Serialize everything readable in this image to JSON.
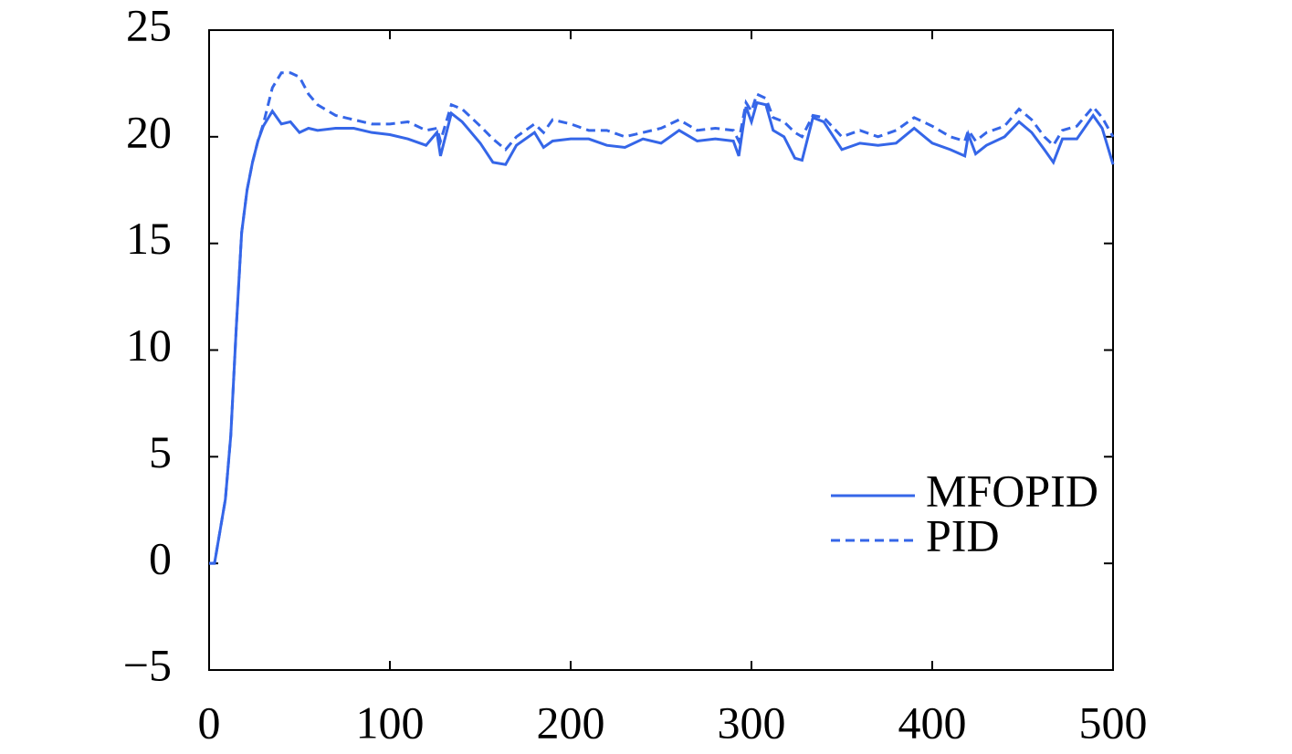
{
  "chart_data": {
    "type": "line",
    "x": [
      0,
      3,
      6,
      9,
      12,
      15,
      18,
      21,
      24,
      27,
      30,
      35,
      40,
      45,
      50,
      55,
      60,
      70,
      80,
      90,
      100,
      110,
      120,
      126,
      128,
      134,
      140,
      150,
      157,
      164,
      170,
      180,
      185,
      190,
      200,
      210,
      220,
      230,
      240,
      250,
      260,
      270,
      280,
      290,
      293,
      297,
      300,
      303,
      308,
      312,
      318,
      324,
      328,
      334,
      340,
      350,
      360,
      370,
      380,
      390,
      400,
      410,
      418,
      420,
      424,
      430,
      440,
      448,
      455,
      462,
      467,
      472,
      480,
      489,
      494,
      500
    ],
    "series": [
      {
        "name": "MFOPID",
        "color": "#3566e8",
        "dash": false,
        "values": [
          0,
          0,
          1.5,
          3,
          6,
          11,
          15.5,
          17.5,
          18.8,
          19.8,
          20.5,
          21.2,
          20.6,
          20.7,
          20.2,
          20.4,
          20.3,
          20.4,
          20.4,
          20.2,
          20.1,
          19.9,
          19.6,
          20.2,
          19.1,
          21.1,
          20.7,
          19.7,
          18.8,
          18.7,
          19.6,
          20.2,
          19.5,
          19.8,
          19.9,
          19.9,
          19.6,
          19.5,
          19.9,
          19.7,
          20.3,
          19.8,
          19.9,
          19.8,
          19.1,
          21.4,
          20.7,
          21.6,
          21.5,
          20.3,
          20,
          19,
          18.9,
          20.9,
          20.7,
          19.4,
          19.7,
          19.6,
          19.7,
          20.4,
          19.7,
          19.4,
          19.1,
          20.1,
          19.2,
          19.6,
          20,
          20.7,
          20.2,
          19.4,
          18.8,
          19.9,
          19.9,
          21,
          20.4,
          18.7
        ]
      },
      {
        "name": "PID",
        "color": "#3566e8",
        "dash": true,
        "values": [
          0,
          0,
          1.5,
          3,
          6,
          11,
          15.5,
          17.5,
          18.8,
          19.8,
          20.6,
          22.3,
          23,
          23,
          22.8,
          22,
          21.5,
          21,
          20.8,
          20.6,
          20.6,
          20.7,
          20.3,
          20.4,
          19.8,
          21.5,
          21.3,
          20.5,
          19.9,
          19.4,
          20,
          20.6,
          20.2,
          20.8,
          20.6,
          20.3,
          20.3,
          20,
          20.2,
          20.4,
          20.8,
          20.3,
          20.4,
          20.3,
          19.8,
          21.6,
          21.2,
          22,
          21.8,
          20.9,
          20.7,
          20.2,
          20,
          21,
          20.9,
          20,
          20.3,
          20,
          20.3,
          20.9,
          20.5,
          20,
          19.8,
          20.3,
          19.8,
          20.2,
          20.5,
          21.3,
          20.8,
          20,
          19.6,
          20.3,
          20.5,
          21.4,
          20.9,
          20
        ]
      }
    ],
    "xlim": [
      0,
      500
    ],
    "xticks": [
      0,
      100,
      200,
      300,
      400,
      500
    ],
    "ylim": [
      -5,
      25
    ],
    "yticks": [
      {
        "value": -5,
        "label": "−5"
      },
      0,
      5,
      10,
      15,
      20,
      25
    ],
    "legend": "right",
    "grid": false
  }
}
